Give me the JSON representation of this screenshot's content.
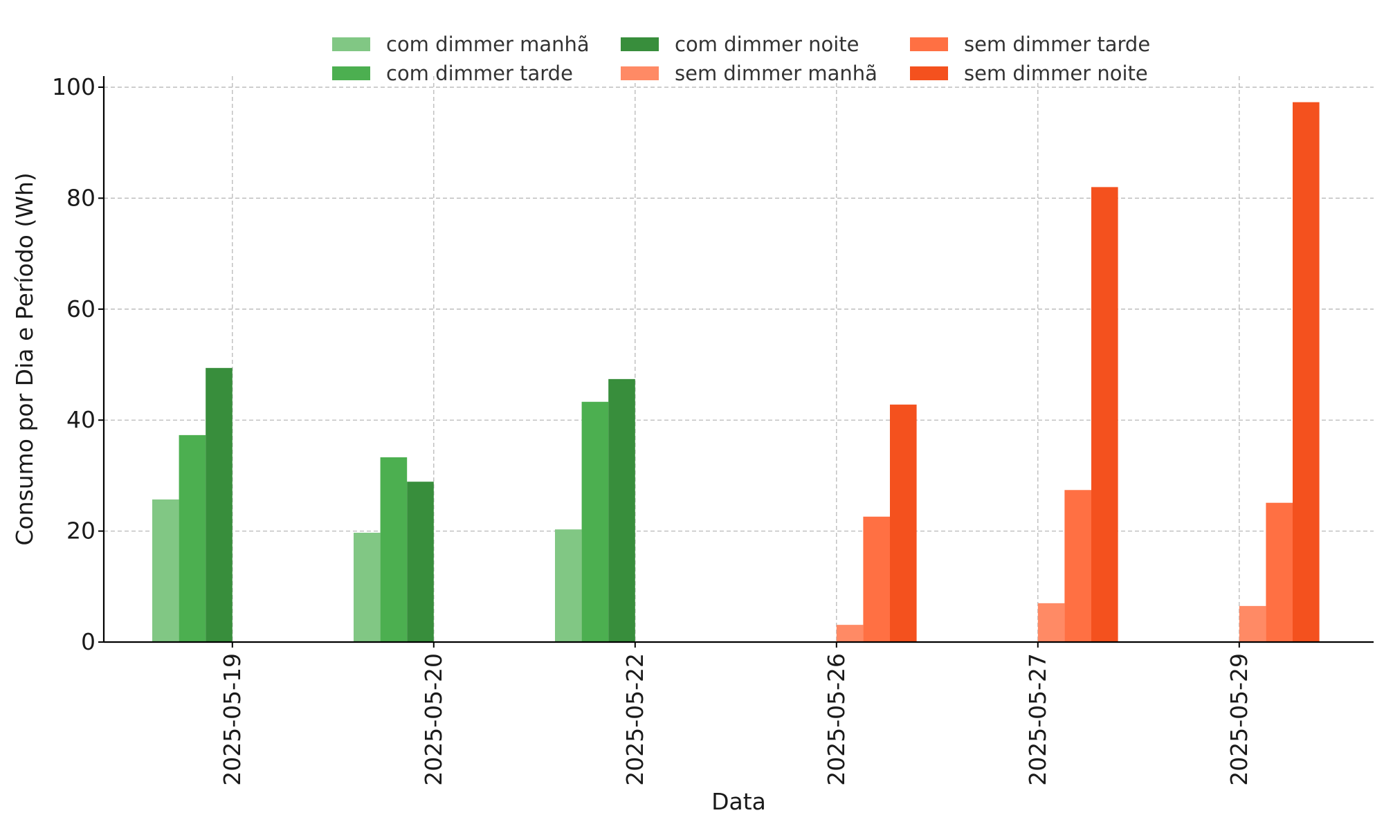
{
  "chart_data": {
    "type": "bar",
    "xlabel": "Data",
    "ylabel": "Consumo por Dia e Período (Wh)",
    "ylim": [
      0,
      102
    ],
    "yticks": [
      0,
      20,
      40,
      60,
      80,
      100
    ],
    "grid": true,
    "legend_placement": "top-center",
    "categories": [
      "2025-05-19",
      "2025-05-20",
      "2025-05-22",
      "2025-05-26",
      "2025-05-27",
      "2025-05-29"
    ],
    "series": [
      {
        "name": "com dimmer manhã",
        "color": "#81c784",
        "values": [
          25.7,
          19.7,
          20.3,
          0,
          0,
          0
        ]
      },
      {
        "name": "com dimmer tarde",
        "color": "#4caf50",
        "values": [
          37.3,
          33.3,
          43.3,
          0,
          0,
          0
        ]
      },
      {
        "name": "com dimmer noite",
        "color": "#388e3c",
        "values": [
          49.4,
          28.9,
          47.4,
          0,
          0,
          0
        ]
      },
      {
        "name": "sem dimmer manhã",
        "color": "#ff8a65",
        "values": [
          0,
          0,
          0,
          3.1,
          7.0,
          6.5
        ]
      },
      {
        "name": "sem dimmer tarde",
        "color": "#ff7043",
        "values": [
          0,
          0,
          0,
          22.6,
          27.4,
          25.1
        ]
      },
      {
        "name": "sem dimmer noite",
        "color": "#f4511e",
        "values": [
          0,
          0,
          0,
          42.8,
          82.0,
          97.3
        ]
      }
    ]
  }
}
